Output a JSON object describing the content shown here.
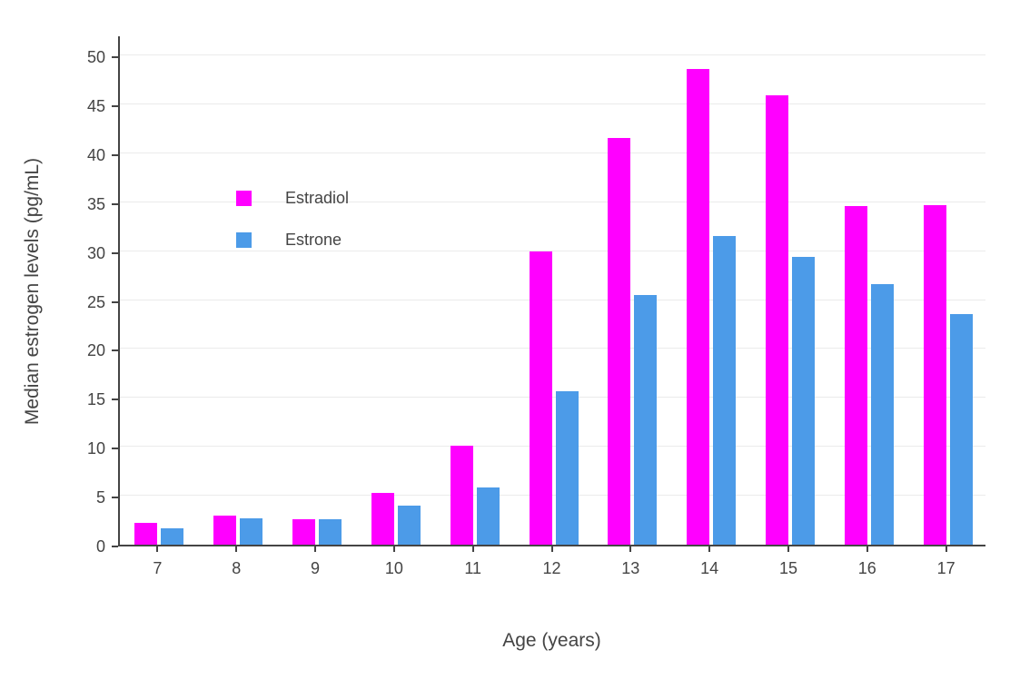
{
  "chart_data": {
    "type": "bar",
    "title": "",
    "xlabel": "Age (years)",
    "ylabel": "Median estrogen levels (pg/mL)",
    "categories": [
      "7",
      "8",
      "9",
      "10",
      "11",
      "12",
      "13",
      "14",
      "15",
      "16",
      "17"
    ],
    "series": [
      {
        "name": "Estradiol",
        "color": "#FF00FF",
        "values": [
          2.2,
          3.0,
          2.6,
          5.3,
          10.1,
          30.0,
          41.6,
          48.6,
          45.9,
          34.6,
          34.7
        ]
      },
      {
        "name": "Estrone",
        "color": "#4C9BE8",
        "values": [
          1.7,
          2.7,
          2.6,
          4.0,
          5.8,
          15.7,
          25.5,
          31.5,
          29.4,
          26.6,
          23.6
        ]
      }
    ],
    "ylim": [
      0,
      50
    ],
    "yticks": [
      0,
      5,
      10,
      15,
      20,
      25,
      30,
      35,
      40,
      45,
      50
    ],
    "grid": true,
    "legend_position": "inside-top-left",
    "colors": {
      "axis": "#444444",
      "grid": "#EBEBEB",
      "background": "#FFFFFF"
    }
  }
}
